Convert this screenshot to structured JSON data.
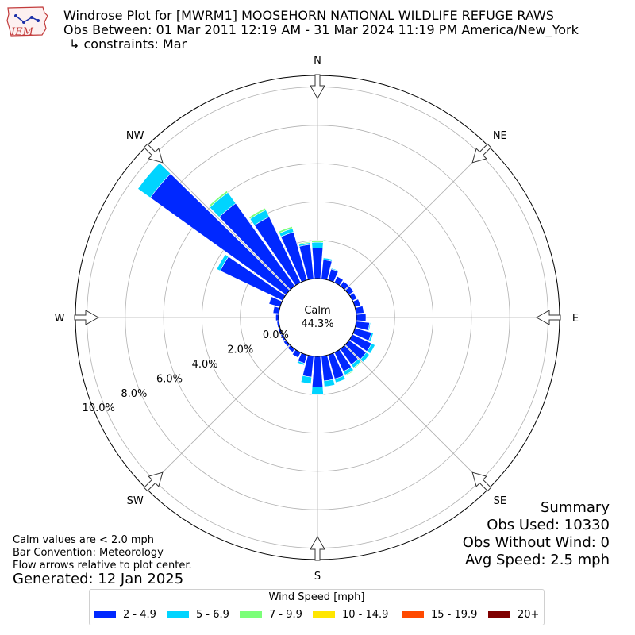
{
  "logo": {
    "text": "IEM"
  },
  "title": {
    "line1": "Windrose Plot for [MWRM1] MOOSEHORN NATIONAL WILDLIFE REFUGE RAWS",
    "line2": "Obs Between: 01 Mar 2011 12:19 AM - 31 Mar 2024 11:19 PM America/New_York",
    "line3": "↳ constraints: Mar"
  },
  "summary": {
    "heading": "Summary",
    "obs_used": "Obs Used: 10330",
    "obs_without_wind": "Obs Without Wind: 0",
    "avg_speed": "Avg Speed: 2.5 mph"
  },
  "notes": {
    "calm": "Calm values are < 2.0 mph",
    "convention": "Bar Convention: Meteorology",
    "flow": "Flow arrows relative to plot center.",
    "generated": "Generated: 12 Jan 2025"
  },
  "legend": {
    "title": "Wind Speed [mph]",
    "items": [
      {
        "label": "2 - 4.9",
        "color": "#0028ff"
      },
      {
        "label": "5 - 6.9",
        "color": "#00d4ff"
      },
      {
        "label": "7 - 9.9",
        "color": "#7cff79"
      },
      {
        "label": "10 - 14.9",
        "color": "#ffe600"
      },
      {
        "label": "15 - 19.9",
        "color": "#ff4a00"
      },
      {
        "label": "20+",
        "color": "#7f0000"
      }
    ]
  },
  "chart_data": {
    "type": "windrose",
    "calm_label": "Calm",
    "calm_percent": "44.3%",
    "direction_labels": [
      "N",
      "NE",
      "E",
      "SE",
      "S",
      "SW",
      "W",
      "NW"
    ],
    "radial_tick_labels": [
      "0.0%",
      "2.0%",
      "4.0%",
      "6.0%",
      "8.0%",
      "10.0%"
    ],
    "radial_ticks": [
      0,
      2,
      4,
      6,
      8,
      10
    ],
    "rmax": 10.6,
    "sector_width_deg": 10,
    "speed_bins": [
      "2 - 4.9",
      "5 - 6.9",
      "7 - 9.9",
      "10 - 14.9",
      "15 - 19.9",
      "20+"
    ],
    "directions_deg": [
      0,
      10,
      20,
      30,
      40,
      50,
      60,
      70,
      80,
      90,
      100,
      110,
      120,
      130,
      140,
      150,
      160,
      170,
      180,
      190,
      200,
      210,
      220,
      230,
      240,
      250,
      260,
      270,
      280,
      290,
      300,
      310,
      320,
      330,
      340,
      350
    ],
    "frequencies": [
      [
        1.6,
        0.3,
        0.1,
        0,
        0,
        0
      ],
      [
        1.0,
        0.1,
        0,
        0,
        0,
        0
      ],
      [
        0.6,
        0.05,
        0,
        0,
        0,
        0
      ],
      [
        0.35,
        0,
        0,
        0,
        0,
        0
      ],
      [
        0.3,
        0,
        0,
        0,
        0,
        0
      ],
      [
        0.3,
        0,
        0,
        0,
        0,
        0
      ],
      [
        0.25,
        0,
        0,
        0,
        0,
        0
      ],
      [
        0.3,
        0,
        0,
        0,
        0,
        0
      ],
      [
        0.4,
        0,
        0,
        0,
        0,
        0
      ],
      [
        0.5,
        0,
        0,
        0,
        0,
        0
      ],
      [
        0.7,
        0.05,
        0,
        0,
        0,
        0
      ],
      [
        0.9,
        0.1,
        0,
        0,
        0,
        0
      ],
      [
        1.1,
        0.2,
        0,
        0,
        0,
        0
      ],
      [
        1.1,
        0.2,
        0,
        0,
        0,
        0
      ],
      [
        1.0,
        0.2,
        0.05,
        0,
        0,
        0
      ],
      [
        1.1,
        0.2,
        0.05,
        0,
        0,
        0
      ],
      [
        1.3,
        0.2,
        0,
        0,
        0,
        0
      ],
      [
        1.3,
        0.3,
        0,
        0,
        0,
        0
      ],
      [
        1.6,
        0.4,
        0,
        0,
        0,
        0
      ],
      [
        1.1,
        0.35,
        0,
        0,
        0,
        0
      ],
      [
        0.45,
        0.1,
        0,
        0,
        0,
        0
      ],
      [
        0.3,
        0,
        0,
        0,
        0,
        0
      ],
      [
        0.2,
        0,
        0,
        0,
        0,
        0
      ],
      [
        0.15,
        0,
        0,
        0,
        0,
        0
      ],
      [
        0.1,
        0,
        0,
        0,
        0,
        0
      ],
      [
        0.1,
        0,
        0,
        0,
        0,
        0
      ],
      [
        0.1,
        0,
        0,
        0,
        0,
        0
      ],
      [
        0.15,
        0,
        0,
        0,
        0,
        0
      ],
      [
        0.3,
        0,
        0,
        0,
        0,
        0
      ],
      [
        0.6,
        0,
        0,
        0,
        0,
        0
      ],
      [
        3.6,
        0.2,
        0,
        0,
        0,
        0
      ],
      [
        8.7,
        0.8,
        0,
        0,
        0,
        0
      ],
      [
        5.3,
        0.7,
        0.1,
        0,
        0,
        0
      ],
      [
        3.8,
        0.4,
        0.1,
        0,
        0,
        0
      ],
      [
        2.6,
        0.2,
        0.1,
        0,
        0,
        0
      ],
      [
        1.8,
        0.1,
        0.05,
        0,
        0,
        0
      ]
    ]
  }
}
